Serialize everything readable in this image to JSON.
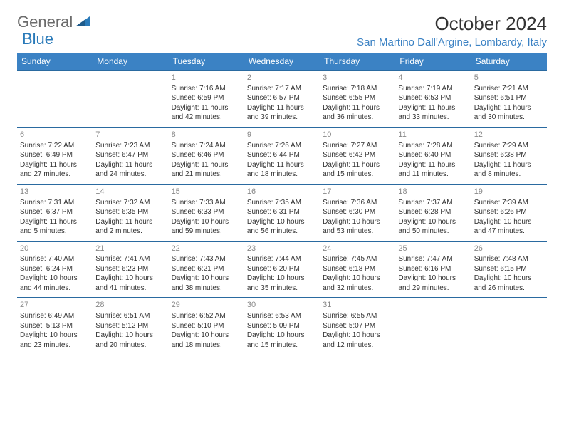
{
  "logo": {
    "text1": "General",
    "text2": "Blue"
  },
  "title": "October 2024",
  "location": "San Martino Dall'Argine, Lombardy, Italy",
  "colors": {
    "header_bg": "#3b82c4",
    "header_text": "#ffffff",
    "row_border": "#2a6aa0",
    "location_color": "#3b82c4",
    "logo_gray": "#6b6b6b",
    "logo_blue": "#2a7ab9",
    "daynum_color": "#888888",
    "body_text": "#333333"
  },
  "day_headers": [
    "Sunday",
    "Monday",
    "Tuesday",
    "Wednesday",
    "Thursday",
    "Friday",
    "Saturday"
  ],
  "weeks": [
    [
      null,
      null,
      {
        "n": "1",
        "sr": "Sunrise: 7:16 AM",
        "ss": "Sunset: 6:59 PM",
        "dl": "Daylight: 11 hours and 42 minutes."
      },
      {
        "n": "2",
        "sr": "Sunrise: 7:17 AM",
        "ss": "Sunset: 6:57 PM",
        "dl": "Daylight: 11 hours and 39 minutes."
      },
      {
        "n": "3",
        "sr": "Sunrise: 7:18 AM",
        "ss": "Sunset: 6:55 PM",
        "dl": "Daylight: 11 hours and 36 minutes."
      },
      {
        "n": "4",
        "sr": "Sunrise: 7:19 AM",
        "ss": "Sunset: 6:53 PM",
        "dl": "Daylight: 11 hours and 33 minutes."
      },
      {
        "n": "5",
        "sr": "Sunrise: 7:21 AM",
        "ss": "Sunset: 6:51 PM",
        "dl": "Daylight: 11 hours and 30 minutes."
      }
    ],
    [
      {
        "n": "6",
        "sr": "Sunrise: 7:22 AM",
        "ss": "Sunset: 6:49 PM",
        "dl": "Daylight: 11 hours and 27 minutes."
      },
      {
        "n": "7",
        "sr": "Sunrise: 7:23 AM",
        "ss": "Sunset: 6:47 PM",
        "dl": "Daylight: 11 hours and 24 minutes."
      },
      {
        "n": "8",
        "sr": "Sunrise: 7:24 AM",
        "ss": "Sunset: 6:46 PM",
        "dl": "Daylight: 11 hours and 21 minutes."
      },
      {
        "n": "9",
        "sr": "Sunrise: 7:26 AM",
        "ss": "Sunset: 6:44 PM",
        "dl": "Daylight: 11 hours and 18 minutes."
      },
      {
        "n": "10",
        "sr": "Sunrise: 7:27 AM",
        "ss": "Sunset: 6:42 PM",
        "dl": "Daylight: 11 hours and 15 minutes."
      },
      {
        "n": "11",
        "sr": "Sunrise: 7:28 AM",
        "ss": "Sunset: 6:40 PM",
        "dl": "Daylight: 11 hours and 11 minutes."
      },
      {
        "n": "12",
        "sr": "Sunrise: 7:29 AM",
        "ss": "Sunset: 6:38 PM",
        "dl": "Daylight: 11 hours and 8 minutes."
      }
    ],
    [
      {
        "n": "13",
        "sr": "Sunrise: 7:31 AM",
        "ss": "Sunset: 6:37 PM",
        "dl": "Daylight: 11 hours and 5 minutes."
      },
      {
        "n": "14",
        "sr": "Sunrise: 7:32 AM",
        "ss": "Sunset: 6:35 PM",
        "dl": "Daylight: 11 hours and 2 minutes."
      },
      {
        "n": "15",
        "sr": "Sunrise: 7:33 AM",
        "ss": "Sunset: 6:33 PM",
        "dl": "Daylight: 10 hours and 59 minutes."
      },
      {
        "n": "16",
        "sr": "Sunrise: 7:35 AM",
        "ss": "Sunset: 6:31 PM",
        "dl": "Daylight: 10 hours and 56 minutes."
      },
      {
        "n": "17",
        "sr": "Sunrise: 7:36 AM",
        "ss": "Sunset: 6:30 PM",
        "dl": "Daylight: 10 hours and 53 minutes."
      },
      {
        "n": "18",
        "sr": "Sunrise: 7:37 AM",
        "ss": "Sunset: 6:28 PM",
        "dl": "Daylight: 10 hours and 50 minutes."
      },
      {
        "n": "19",
        "sr": "Sunrise: 7:39 AM",
        "ss": "Sunset: 6:26 PM",
        "dl": "Daylight: 10 hours and 47 minutes."
      }
    ],
    [
      {
        "n": "20",
        "sr": "Sunrise: 7:40 AM",
        "ss": "Sunset: 6:24 PM",
        "dl": "Daylight: 10 hours and 44 minutes."
      },
      {
        "n": "21",
        "sr": "Sunrise: 7:41 AM",
        "ss": "Sunset: 6:23 PM",
        "dl": "Daylight: 10 hours and 41 minutes."
      },
      {
        "n": "22",
        "sr": "Sunrise: 7:43 AM",
        "ss": "Sunset: 6:21 PM",
        "dl": "Daylight: 10 hours and 38 minutes."
      },
      {
        "n": "23",
        "sr": "Sunrise: 7:44 AM",
        "ss": "Sunset: 6:20 PM",
        "dl": "Daylight: 10 hours and 35 minutes."
      },
      {
        "n": "24",
        "sr": "Sunrise: 7:45 AM",
        "ss": "Sunset: 6:18 PM",
        "dl": "Daylight: 10 hours and 32 minutes."
      },
      {
        "n": "25",
        "sr": "Sunrise: 7:47 AM",
        "ss": "Sunset: 6:16 PM",
        "dl": "Daylight: 10 hours and 29 minutes."
      },
      {
        "n": "26",
        "sr": "Sunrise: 7:48 AM",
        "ss": "Sunset: 6:15 PM",
        "dl": "Daylight: 10 hours and 26 minutes."
      }
    ],
    [
      {
        "n": "27",
        "sr": "Sunrise: 6:49 AM",
        "ss": "Sunset: 5:13 PM",
        "dl": "Daylight: 10 hours and 23 minutes."
      },
      {
        "n": "28",
        "sr": "Sunrise: 6:51 AM",
        "ss": "Sunset: 5:12 PM",
        "dl": "Daylight: 10 hours and 20 minutes."
      },
      {
        "n": "29",
        "sr": "Sunrise: 6:52 AM",
        "ss": "Sunset: 5:10 PM",
        "dl": "Daylight: 10 hours and 18 minutes."
      },
      {
        "n": "30",
        "sr": "Sunrise: 6:53 AM",
        "ss": "Sunset: 5:09 PM",
        "dl": "Daylight: 10 hours and 15 minutes."
      },
      {
        "n": "31",
        "sr": "Sunrise: 6:55 AM",
        "ss": "Sunset: 5:07 PM",
        "dl": "Daylight: 10 hours and 12 minutes."
      },
      null,
      null
    ]
  ]
}
